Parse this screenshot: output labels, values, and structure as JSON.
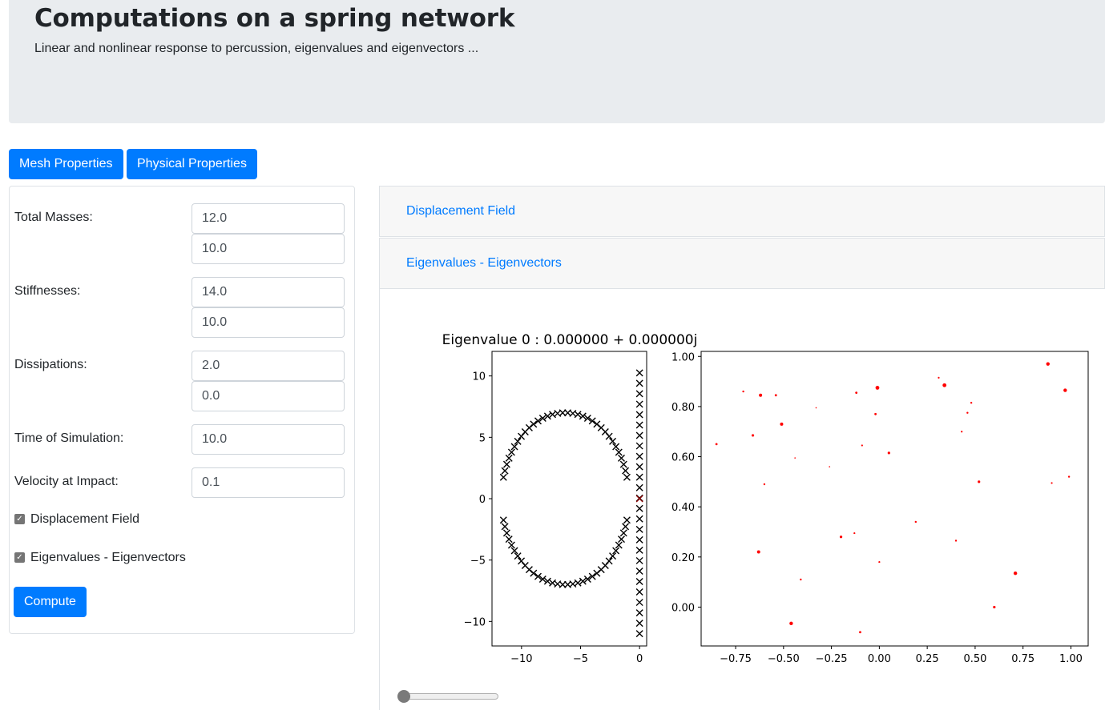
{
  "header": {
    "title": "Computations on a spring network",
    "subtitle": "Linear and nonlinear response to percussion, eigenvalues and eigenvectors ..."
  },
  "tabs": [
    {
      "label": "Mesh Properties"
    },
    {
      "label": "Physical Properties"
    }
  ],
  "form": {
    "total_masses_label": "Total Masses:",
    "total_masses": [
      "12.0",
      "10.0"
    ],
    "stiffnesses_label": "Stiffnesses:",
    "stiffnesses": [
      "14.0",
      "10.0"
    ],
    "dissipations_label": "Dissipations:",
    "dissipations": [
      "2.0",
      "0.0"
    ],
    "time_label": "Time of Simulation:",
    "time": "10.0",
    "velocity_label": "Velocity at Impact:",
    "velocity": "0.1",
    "check_displacement": {
      "label": "Displacement Field",
      "checked": true
    },
    "check_eigen": {
      "label": "Eigenvalues - Eigenvectors",
      "checked": true
    },
    "compute_label": "Compute"
  },
  "accordion": {
    "item1": "Displacement Field",
    "item2": "Eigenvalues - Eigenvectors"
  },
  "slider": {
    "value": 0
  },
  "chart_data": [
    {
      "type": "scatter",
      "title": "Eigenvalue 0 : 0.000000 + 0.000000j",
      "marker": "x",
      "color": "#000000",
      "xlim": [
        -12.5,
        0.6
      ],
      "ylim": [
        -12,
        12
      ],
      "xticks": [
        -10,
        -5,
        0
      ],
      "yticks": [
        -10,
        -5,
        0,
        5,
        10
      ],
      "arc": {
        "center_x": -6.3,
        "radius_y": 7.0,
        "x_range": [
          -11.7,
          -0.3
        ]
      },
      "column_x": 0.0,
      "column_y_range": [
        -11,
        11
      ],
      "highlight": {
        "x": 0,
        "y": 0,
        "color": "#8b0000"
      }
    },
    {
      "type": "scatter",
      "marker": "dot",
      "color": "#ff0000",
      "xlim": [
        -0.93,
        1.09
      ],
      "ylim": [
        -0.155,
        1.02
      ],
      "xticks": [
        -0.75,
        -0.5,
        -0.25,
        0.0,
        0.25,
        0.5,
        0.75,
        1.0
      ],
      "yticks": [
        0.0,
        0.2,
        0.4,
        0.6,
        0.8,
        1.0
      ],
      "points": [
        {
          "x": 0.88,
          "y": 0.97,
          "s": 2.2
        },
        {
          "x": 0.97,
          "y": 0.865,
          "s": 2.2
        },
        {
          "x": -0.71,
          "y": 0.86,
          "s": 1.2
        },
        {
          "x": -0.62,
          "y": 0.845,
          "s": 2.0
        },
        {
          "x": -0.54,
          "y": 0.845,
          "s": 1.4
        },
        {
          "x": -0.12,
          "y": 0.855,
          "s": 1.4
        },
        {
          "x": -0.01,
          "y": 0.875,
          "s": 2.4
        },
        {
          "x": 0.31,
          "y": 0.915,
          "s": 1.1
        },
        {
          "x": 0.34,
          "y": 0.885,
          "s": 2.4
        },
        {
          "x": 0.48,
          "y": 0.815,
          "s": 1.2
        },
        {
          "x": 0.46,
          "y": 0.775,
          "s": 1.2
        },
        {
          "x": -0.33,
          "y": 0.795,
          "s": 0.8
        },
        {
          "x": -0.02,
          "y": 0.77,
          "s": 1.4
        },
        {
          "x": -0.51,
          "y": 0.73,
          "s": 2.0
        },
        {
          "x": 0.43,
          "y": 0.7,
          "s": 1.1
        },
        {
          "x": -0.66,
          "y": 0.685,
          "s": 1.6
        },
        {
          "x": -0.85,
          "y": 0.65,
          "s": 1.4
        },
        {
          "x": -0.09,
          "y": 0.645,
          "s": 1.1
        },
        {
          "x": 0.05,
          "y": 0.615,
          "s": 1.6
        },
        {
          "x": -0.44,
          "y": 0.595,
          "s": 0.8
        },
        {
          "x": -0.26,
          "y": 0.56,
          "s": 0.8
        },
        {
          "x": 0.99,
          "y": 0.52,
          "s": 1.2
        },
        {
          "x": 0.52,
          "y": 0.5,
          "s": 1.6
        },
        {
          "x": 0.9,
          "y": 0.495,
          "s": 1.1
        },
        {
          "x": -0.6,
          "y": 0.49,
          "s": 1.2
        },
        {
          "x": 0.19,
          "y": 0.34,
          "s": 1.2
        },
        {
          "x": -0.13,
          "y": 0.295,
          "s": 1.1
        },
        {
          "x": -0.2,
          "y": 0.28,
          "s": 1.6
        },
        {
          "x": 0.4,
          "y": 0.265,
          "s": 1.2
        },
        {
          "x": -0.63,
          "y": 0.22,
          "s": 2.0
        },
        {
          "x": 0.0,
          "y": 0.18,
          "s": 1.1
        },
        {
          "x": 0.71,
          "y": 0.135,
          "s": 2.2
        },
        {
          "x": -0.41,
          "y": 0.11,
          "s": 1.2
        },
        {
          "x": 0.6,
          "y": 0.0,
          "s": 1.6
        },
        {
          "x": -0.46,
          "y": -0.065,
          "s": 2.2
        },
        {
          "x": -0.1,
          "y": -0.1,
          "s": 1.4
        }
      ]
    }
  ]
}
